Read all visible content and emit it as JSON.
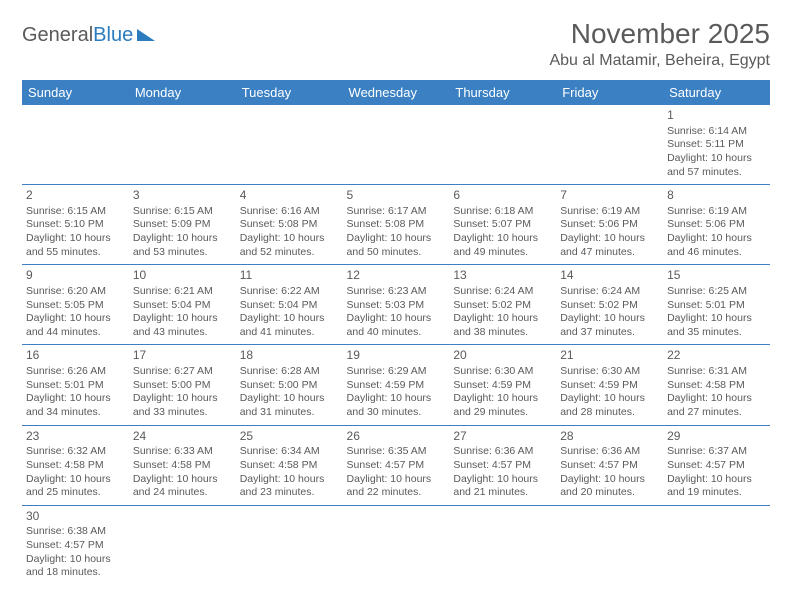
{
  "logo": {
    "textA": "General",
    "textB": "Blue"
  },
  "header": {
    "month": "November 2025",
    "location": "Abu al Matamir, Beheira, Egypt"
  },
  "colors": {
    "header_bg": "#3a80c3",
    "header_text": "#ffffff",
    "border": "#3a80c3",
    "text": "#5a5a5a",
    "logo_blue": "#2b7bbf"
  },
  "dayNames": [
    "Sunday",
    "Monday",
    "Tuesday",
    "Wednesday",
    "Thursday",
    "Friday",
    "Saturday"
  ],
  "weeks": [
    [
      null,
      null,
      null,
      null,
      null,
      null,
      {
        "n": "1",
        "sr": "6:14 AM",
        "ss": "5:11 PM",
        "dl": "10 hours and 57 minutes."
      }
    ],
    [
      {
        "n": "2",
        "sr": "6:15 AM",
        "ss": "5:10 PM",
        "dl": "10 hours and 55 minutes."
      },
      {
        "n": "3",
        "sr": "6:15 AM",
        "ss": "5:09 PM",
        "dl": "10 hours and 53 minutes."
      },
      {
        "n": "4",
        "sr": "6:16 AM",
        "ss": "5:08 PM",
        "dl": "10 hours and 52 minutes."
      },
      {
        "n": "5",
        "sr": "6:17 AM",
        "ss": "5:08 PM",
        "dl": "10 hours and 50 minutes."
      },
      {
        "n": "6",
        "sr": "6:18 AM",
        "ss": "5:07 PM",
        "dl": "10 hours and 49 minutes."
      },
      {
        "n": "7",
        "sr": "6:19 AM",
        "ss": "5:06 PM",
        "dl": "10 hours and 47 minutes."
      },
      {
        "n": "8",
        "sr": "6:19 AM",
        "ss": "5:06 PM",
        "dl": "10 hours and 46 minutes."
      }
    ],
    [
      {
        "n": "9",
        "sr": "6:20 AM",
        "ss": "5:05 PM",
        "dl": "10 hours and 44 minutes."
      },
      {
        "n": "10",
        "sr": "6:21 AM",
        "ss": "5:04 PM",
        "dl": "10 hours and 43 minutes."
      },
      {
        "n": "11",
        "sr": "6:22 AM",
        "ss": "5:04 PM",
        "dl": "10 hours and 41 minutes."
      },
      {
        "n": "12",
        "sr": "6:23 AM",
        "ss": "5:03 PM",
        "dl": "10 hours and 40 minutes."
      },
      {
        "n": "13",
        "sr": "6:24 AM",
        "ss": "5:02 PM",
        "dl": "10 hours and 38 minutes."
      },
      {
        "n": "14",
        "sr": "6:24 AM",
        "ss": "5:02 PM",
        "dl": "10 hours and 37 minutes."
      },
      {
        "n": "15",
        "sr": "6:25 AM",
        "ss": "5:01 PM",
        "dl": "10 hours and 35 minutes."
      }
    ],
    [
      {
        "n": "16",
        "sr": "6:26 AM",
        "ss": "5:01 PM",
        "dl": "10 hours and 34 minutes."
      },
      {
        "n": "17",
        "sr": "6:27 AM",
        "ss": "5:00 PM",
        "dl": "10 hours and 33 minutes."
      },
      {
        "n": "18",
        "sr": "6:28 AM",
        "ss": "5:00 PM",
        "dl": "10 hours and 31 minutes."
      },
      {
        "n": "19",
        "sr": "6:29 AM",
        "ss": "4:59 PM",
        "dl": "10 hours and 30 minutes."
      },
      {
        "n": "20",
        "sr": "6:30 AM",
        "ss": "4:59 PM",
        "dl": "10 hours and 29 minutes."
      },
      {
        "n": "21",
        "sr": "6:30 AM",
        "ss": "4:59 PM",
        "dl": "10 hours and 28 minutes."
      },
      {
        "n": "22",
        "sr": "6:31 AM",
        "ss": "4:58 PM",
        "dl": "10 hours and 27 minutes."
      }
    ],
    [
      {
        "n": "23",
        "sr": "6:32 AM",
        "ss": "4:58 PM",
        "dl": "10 hours and 25 minutes."
      },
      {
        "n": "24",
        "sr": "6:33 AM",
        "ss": "4:58 PM",
        "dl": "10 hours and 24 minutes."
      },
      {
        "n": "25",
        "sr": "6:34 AM",
        "ss": "4:58 PM",
        "dl": "10 hours and 23 minutes."
      },
      {
        "n": "26",
        "sr": "6:35 AM",
        "ss": "4:57 PM",
        "dl": "10 hours and 22 minutes."
      },
      {
        "n": "27",
        "sr": "6:36 AM",
        "ss": "4:57 PM",
        "dl": "10 hours and 21 minutes."
      },
      {
        "n": "28",
        "sr": "6:36 AM",
        "ss": "4:57 PM",
        "dl": "10 hours and 20 minutes."
      },
      {
        "n": "29",
        "sr": "6:37 AM",
        "ss": "4:57 PM",
        "dl": "10 hours and 19 minutes."
      }
    ],
    [
      {
        "n": "30",
        "sr": "6:38 AM",
        "ss": "4:57 PM",
        "dl": "10 hours and 18 minutes."
      },
      null,
      null,
      null,
      null,
      null,
      null
    ]
  ],
  "labels": {
    "sunrise": "Sunrise: ",
    "sunset": "Sunset: ",
    "daylight": "Daylight: "
  }
}
